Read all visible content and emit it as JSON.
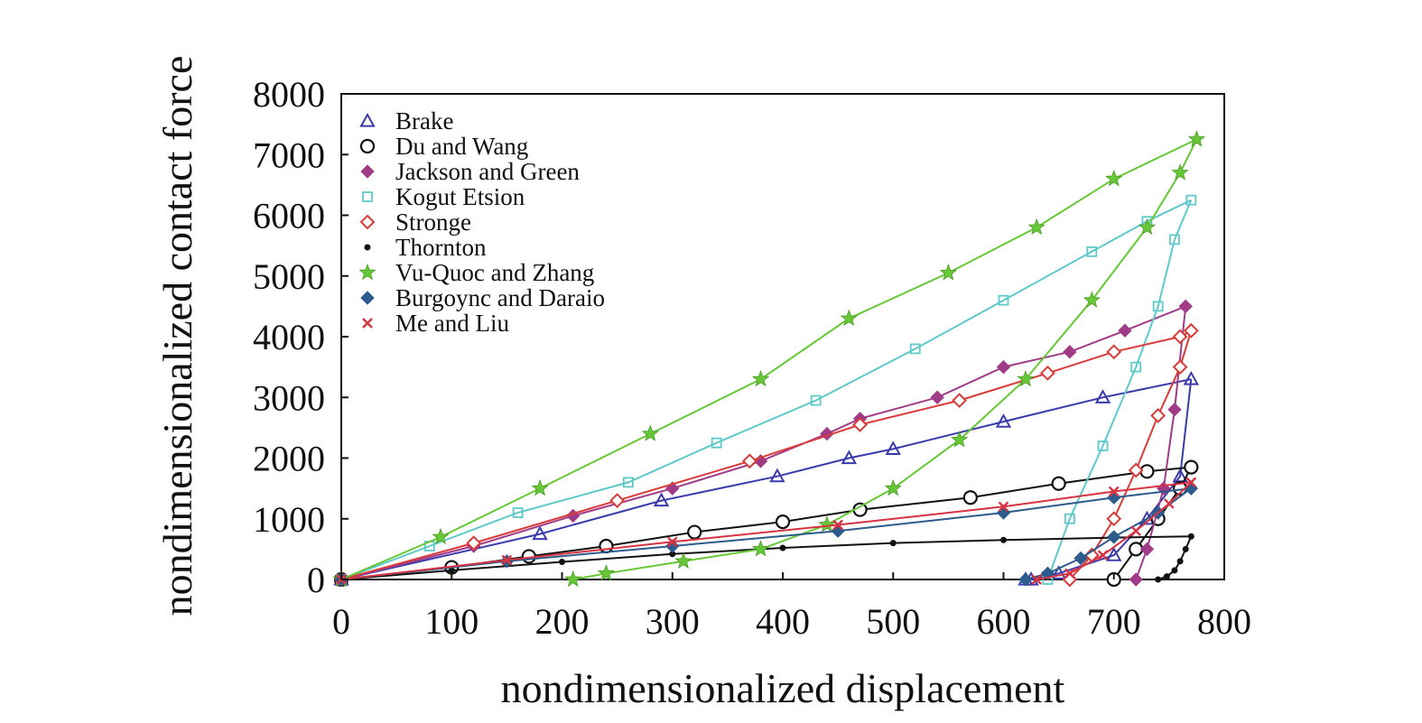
{
  "chart_data": {
    "type": "line",
    "xlabel": "nondimensionalized displacement",
    "ylabel": "nondimensionalized contact force",
    "xlim": [
      0,
      800
    ],
    "ylim": [
      0,
      8000
    ],
    "xticks": [
      "0",
      "100",
      "200",
      "300",
      "400",
      "500",
      "600",
      "700",
      "800"
    ],
    "yticks": [
      "0",
      "1000",
      "2000",
      "3000",
      "4000",
      "5000",
      "6000",
      "7000",
      "8000"
    ],
    "grid": false,
    "legend_position": "top-left",
    "series": [
      {
        "name": "Brake",
        "color": "#3b3bab",
        "marker": "triangle",
        "x": [
          0,
          180,
          290,
          395,
          460,
          500,
          600,
          690,
          770,
          760,
          730,
          700,
          650,
          625,
          620
        ],
        "y": [
          0,
          750,
          1300,
          1700,
          2000,
          2150,
          2600,
          3000,
          3300,
          1700,
          1000,
          400,
          100,
          0,
          0
        ],
        "unloading_start": 8
      },
      {
        "name": "Du and Wang",
        "color": "#111111",
        "marker": "circle",
        "x": [
          0,
          100,
          170,
          240,
          320,
          400,
          470,
          570,
          650,
          730,
          770,
          760,
          740,
          720,
          700
        ],
        "y": [
          0,
          200,
          380,
          550,
          780,
          950,
          1150,
          1350,
          1580,
          1780,
          1850,
          1500,
          1000,
          500,
          0
        ],
        "unloading_start": 10
      },
      {
        "name": "Jackson and Green",
        "color": "#a03c87",
        "marker": "diamond-filled",
        "x": [
          0,
          120,
          210,
          300,
          380,
          440,
          470,
          540,
          600,
          660,
          710,
          765,
          755,
          745,
          730,
          720
        ],
        "y": [
          0,
          550,
          1050,
          1500,
          1950,
          2400,
          2650,
          3000,
          3500,
          3750,
          4100,
          4500,
          2800,
          1500,
          500,
          0
        ],
        "unloading_start": 11
      },
      {
        "name": "Kogut Etsion",
        "color": "#5fc9c9",
        "marker": "square",
        "x": [
          0,
          80,
          160,
          260,
          340,
          430,
          520,
          600,
          680,
          730,
          770,
          755,
          740,
          720,
          690,
          660,
          640
        ],
        "y": [
          0,
          550,
          1100,
          1600,
          2250,
          2950,
          3800,
          4600,
          5400,
          5900,
          6250,
          5600,
          4500,
          3500,
          2200,
          1000,
          0
        ],
        "unloading_start": 10
      },
      {
        "name": "Stronge",
        "color": "#d93b3b",
        "marker": "diamond-open",
        "x": [
          0,
          120,
          250,
          370,
          470,
          560,
          640,
          700,
          760,
          770,
          760,
          740,
          720,
          700,
          680,
          660
        ],
        "y": [
          0,
          600,
          1300,
          1950,
          2550,
          2950,
          3400,
          3750,
          4000,
          4100,
          3500,
          2700,
          1800,
          1000,
          400,
          0
        ],
        "unloading_start": 9
      },
      {
        "name": "Thornton",
        "color": "#111111",
        "marker": "dot",
        "x": [
          0,
          100,
          200,
          300,
          400,
          500,
          600,
          700,
          770,
          765,
          760,
          755,
          748,
          740
        ],
        "y": [
          0,
          150,
          290,
          420,
          520,
          600,
          650,
          690,
          710,
          500,
          300,
          150,
          50,
          0
        ],
        "unloading_start": 8
      },
      {
        "name": "Vu-Quoc and Zhang",
        "color": "#66c837",
        "marker": "star",
        "x": [
          0,
          90,
          180,
          280,
          380,
          460,
          550,
          630,
          700,
          775,
          760,
          730,
          680,
          620,
          560,
          500,
          440,
          380,
          310,
          240,
          210
        ],
        "y": [
          0,
          700,
          1500,
          2400,
          3300,
          4300,
          5050,
          5800,
          6600,
          7250,
          6700,
          5800,
          4600,
          3300,
          2300,
          1500,
          900,
          500,
          300,
          100,
          0
        ],
        "unloading_start": 9
      },
      {
        "name": "Burgoync and Daraio",
        "color": "#2c5b8c",
        "marker": "diamond-filled",
        "x": [
          0,
          150,
          300,
          450,
          600,
          700,
          770,
          740,
          700,
          670,
          640,
          620
        ],
        "y": [
          0,
          300,
          550,
          800,
          1100,
          1350,
          1500,
          1100,
          700,
          350,
          100,
          0
        ],
        "unloading_start": 6
      },
      {
        "name": "Me and Liu",
        "color": "#d73343",
        "marker": "cross",
        "x": [
          0,
          150,
          300,
          450,
          600,
          700,
          770,
          750,
          720,
          690,
          660,
          630
        ],
        "y": [
          0,
          320,
          620,
          900,
          1200,
          1450,
          1600,
          1250,
          800,
          400,
          100,
          0
        ],
        "unloading_start": 6
      }
    ]
  }
}
